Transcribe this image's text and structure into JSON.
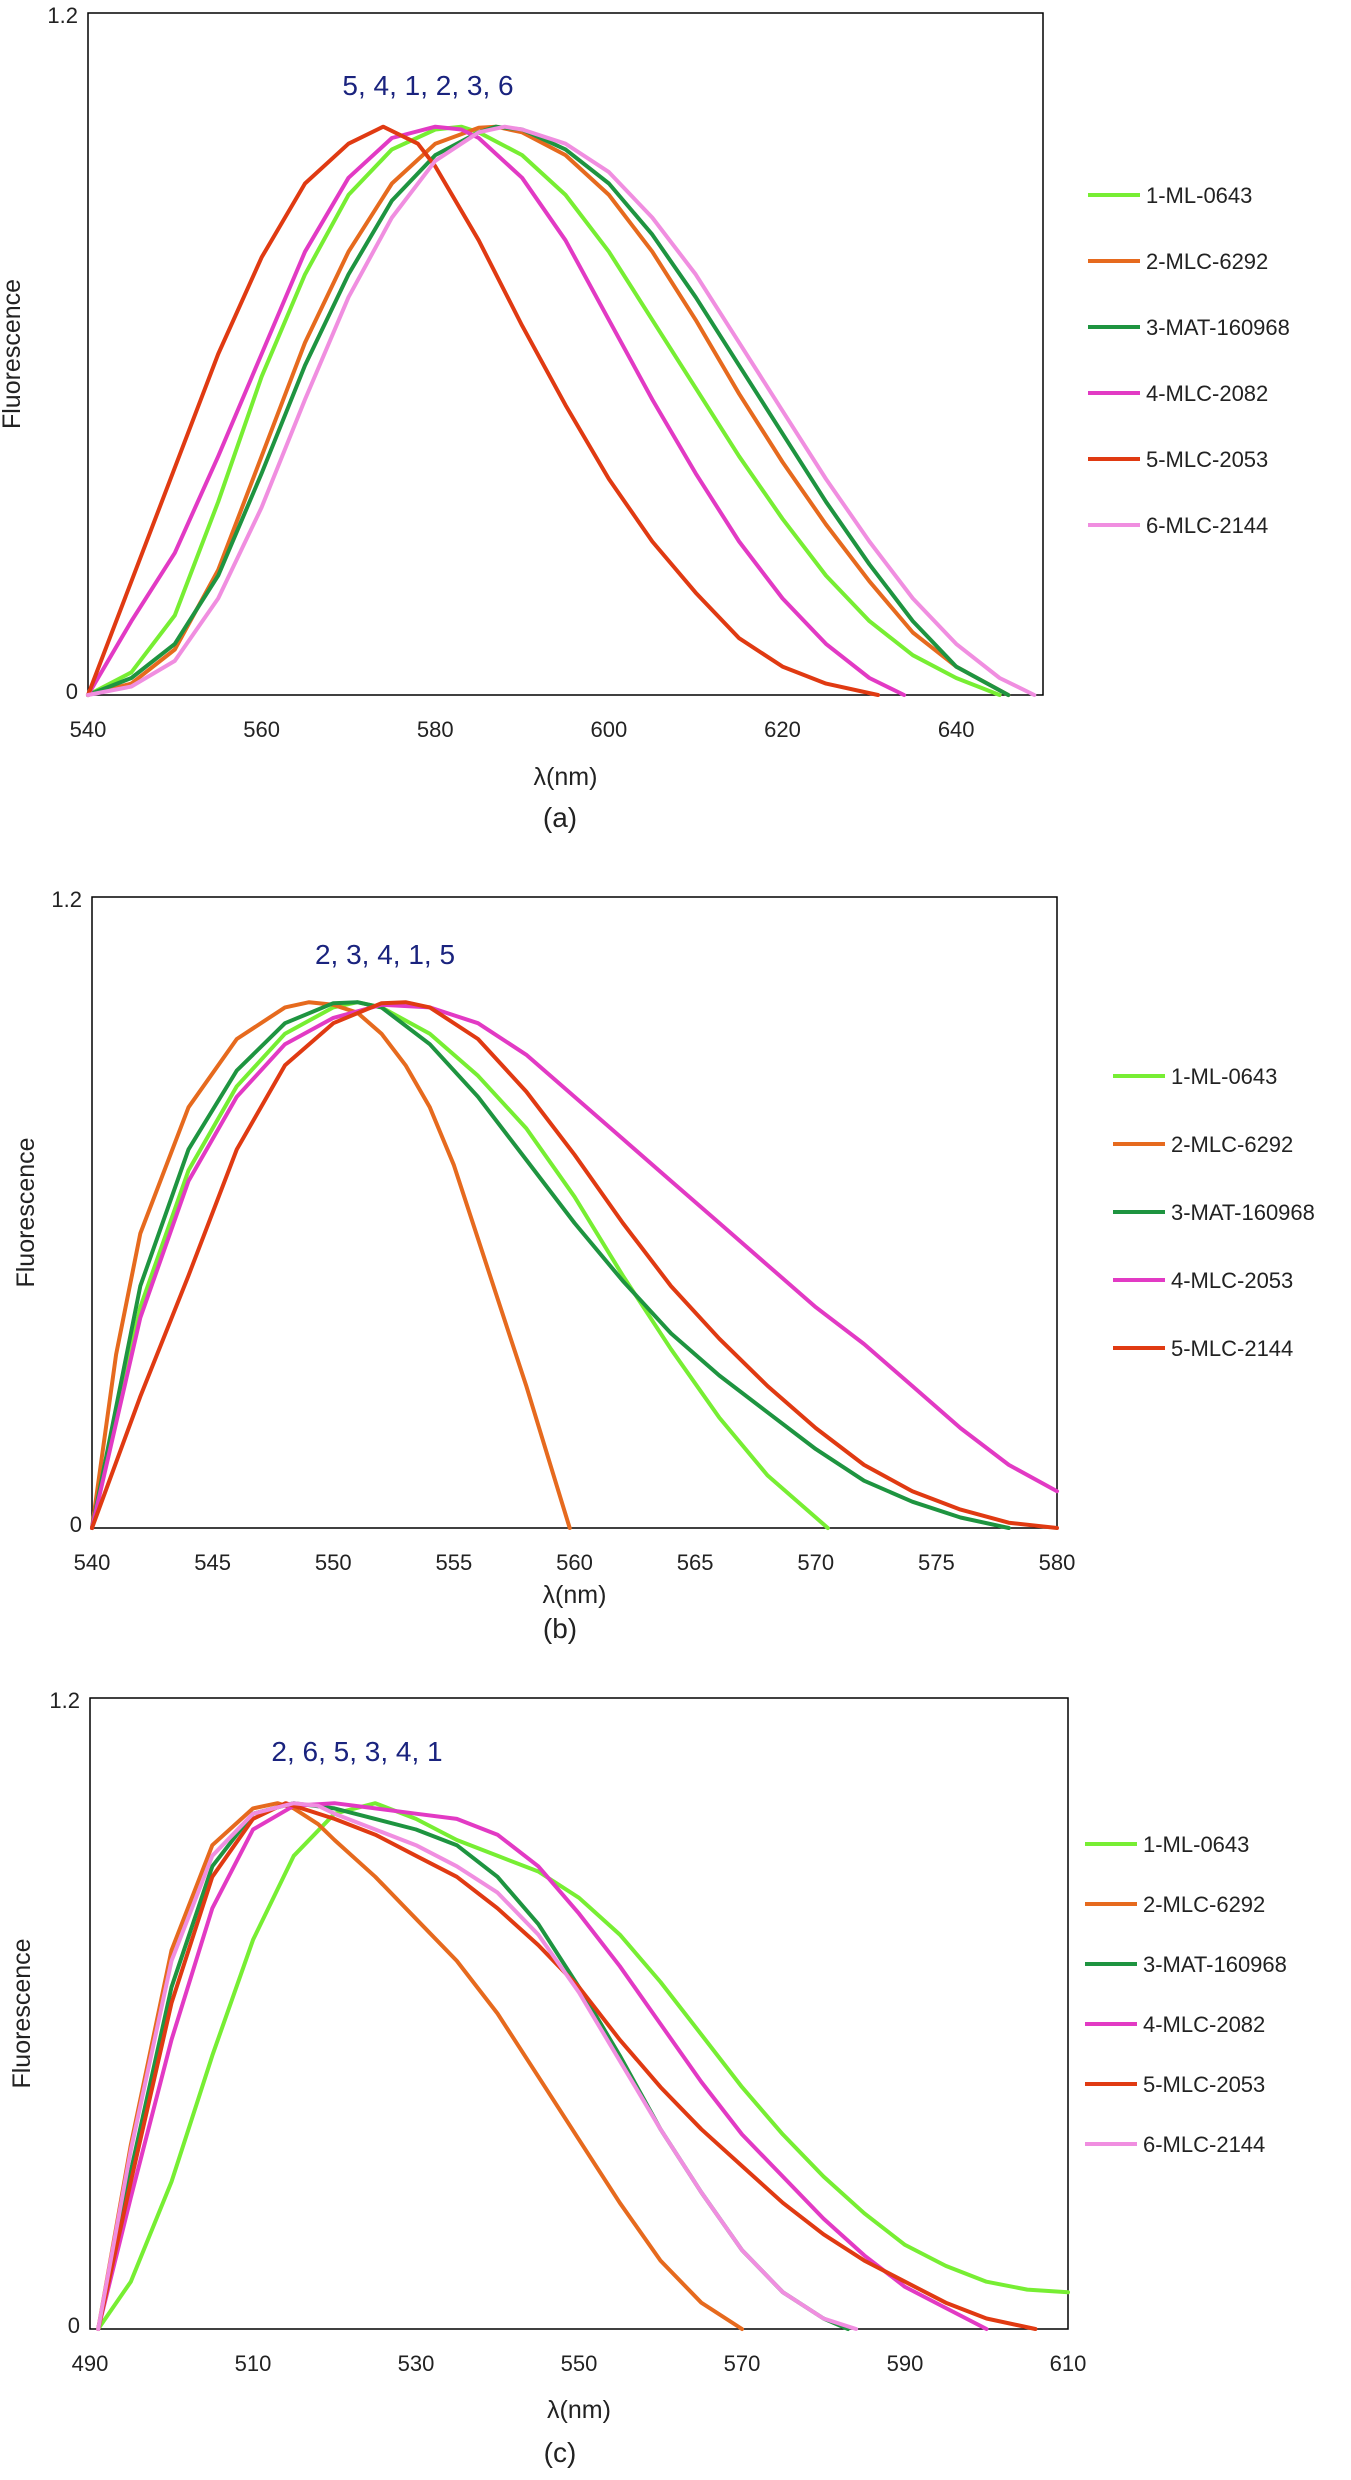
{
  "chart_data": [
    {
      "type": "line",
      "panel_label": "(a)",
      "annotation": "5, 4, 1, 2, 3, 6",
      "xlabel": "λ(nm)",
      "ylabel": "Fluorescence",
      "xlim": [
        540,
        650
      ],
      "ylim": [
        0,
        1.2
      ],
      "xticks": [
        540,
        560,
        580,
        600,
        620,
        640
      ],
      "yticks": [
        0,
        1.2
      ],
      "grid": false,
      "legend_position": "right",
      "series": [
        {
          "name": "1-ML-0643",
          "color": "#77ee33",
          "x": [
            540,
            545,
            550,
            555,
            560,
            565,
            570,
            575,
            580,
            583,
            585,
            590,
            595,
            600,
            605,
            610,
            615,
            620,
            625,
            630,
            635,
            640,
            645
          ],
          "y": [
            0,
            0.04,
            0.14,
            0.34,
            0.56,
            0.74,
            0.88,
            0.96,
            0.995,
            1.0,
            0.99,
            0.95,
            0.88,
            0.78,
            0.66,
            0.54,
            0.42,
            0.31,
            0.21,
            0.13,
            0.07,
            0.03,
            0
          ]
        },
        {
          "name": "2-MLC-6292",
          "color": "#e66a1e",
          "x": [
            540,
            545,
            550,
            555,
            560,
            565,
            570,
            575,
            580,
            585,
            587,
            590,
            595,
            600,
            605,
            610,
            615,
            620,
            625,
            630,
            635,
            640,
            646
          ],
          "y": [
            0,
            0.02,
            0.08,
            0.22,
            0.42,
            0.62,
            0.78,
            0.9,
            0.97,
            0.998,
            1.0,
            0.99,
            0.95,
            0.88,
            0.78,
            0.66,
            0.53,
            0.41,
            0.3,
            0.2,
            0.11,
            0.05,
            0
          ]
        },
        {
          "name": "3-MAT-160968",
          "color": "#1e9440",
          "x": [
            540,
            545,
            550,
            555,
            560,
            565,
            570,
            575,
            580,
            585,
            587,
            590,
            595,
            600,
            605,
            610,
            615,
            620,
            625,
            630,
            635,
            640,
            646
          ],
          "y": [
            0,
            0.03,
            0.09,
            0.21,
            0.39,
            0.58,
            0.74,
            0.87,
            0.95,
            0.99,
            1.0,
            0.995,
            0.96,
            0.9,
            0.81,
            0.7,
            0.58,
            0.46,
            0.34,
            0.23,
            0.13,
            0.05,
            0
          ]
        },
        {
          "name": "4-MLC-2082",
          "color": "#e23ac4",
          "x": [
            540,
            545,
            550,
            555,
            560,
            565,
            570,
            575,
            580,
            583,
            585,
            590,
            595,
            600,
            605,
            610,
            615,
            620,
            625,
            630,
            634
          ],
          "y": [
            0,
            0.13,
            0.25,
            0.42,
            0.6,
            0.78,
            0.91,
            0.98,
            1.0,
            0.995,
            0.98,
            0.91,
            0.8,
            0.66,
            0.52,
            0.39,
            0.27,
            0.17,
            0.09,
            0.03,
            0
          ]
        },
        {
          "name": "5-MLC-2053",
          "color": "#e03a12",
          "x": [
            540,
            545,
            550,
            555,
            560,
            565,
            570,
            574,
            578,
            580,
            585,
            590,
            595,
            600,
            605,
            610,
            615,
            620,
            625,
            631
          ],
          "y": [
            0,
            0.2,
            0.4,
            0.6,
            0.77,
            0.9,
            0.97,
            1.0,
            0.97,
            0.93,
            0.8,
            0.65,
            0.51,
            0.38,
            0.27,
            0.18,
            0.1,
            0.05,
            0.02,
            0
          ]
        },
        {
          "name": "6-MLC-2144",
          "color": "#f08ee0",
          "x": [
            540,
            545,
            550,
            555,
            560,
            565,
            570,
            575,
            580,
            585,
            588,
            590,
            595,
            600,
            605,
            610,
            615,
            620,
            625,
            630,
            635,
            640,
            645,
            649
          ],
          "y": [
            0,
            0.015,
            0.06,
            0.17,
            0.33,
            0.52,
            0.7,
            0.84,
            0.94,
            0.99,
            1.0,
            0.995,
            0.97,
            0.92,
            0.84,
            0.74,
            0.62,
            0.5,
            0.38,
            0.27,
            0.17,
            0.09,
            0.03,
            0
          ]
        }
      ]
    },
    {
      "type": "line",
      "panel_label": "(b)",
      "annotation": "2, 3, 4, 1, 5",
      "xlabel": "λ(nm)",
      "ylabel": "Fluorescence",
      "xlim": [
        540,
        580
      ],
      "ylim": [
        0,
        1.2
      ],
      "xticks": [
        540,
        545,
        550,
        555,
        560,
        565,
        570,
        575,
        580
      ],
      "yticks": [
        0,
        1.2
      ],
      "grid": false,
      "legend_position": "right",
      "series": [
        {
          "name": "1-ML-0643",
          "color": "#77ee33",
          "x": [
            540,
            542,
            544,
            546,
            548,
            550,
            551,
            552,
            554,
            556,
            558,
            560,
            562,
            564,
            566,
            568,
            570,
            570.5
          ],
          "y": [
            0,
            0.42,
            0.68,
            0.84,
            0.94,
            0.99,
            1.0,
            0.99,
            0.94,
            0.86,
            0.76,
            0.63,
            0.48,
            0.34,
            0.21,
            0.1,
            0.02,
            0
          ]
        },
        {
          "name": "2-MLC-6292",
          "color": "#e66a1e",
          "x": [
            540,
            541,
            542,
            544,
            546,
            548,
            549,
            550,
            551,
            552,
            553,
            554,
            555,
            556,
            557,
            558,
            559,
            559.8
          ],
          "y": [
            0,
            0.33,
            0.56,
            0.8,
            0.93,
            0.99,
            1.0,
            0.995,
            0.98,
            0.94,
            0.88,
            0.8,
            0.69,
            0.55,
            0.41,
            0.27,
            0.12,
            0
          ]
        },
        {
          "name": "3-MAT-160968",
          "color": "#1e9440",
          "x": [
            540,
            542,
            544,
            546,
            548,
            550,
            551,
            552,
            554,
            556,
            558,
            560,
            562,
            564,
            566,
            568,
            570,
            572,
            574,
            576,
            578
          ],
          "y": [
            0,
            0.46,
            0.72,
            0.87,
            0.96,
            0.998,
            1.0,
            0.99,
            0.92,
            0.82,
            0.7,
            0.58,
            0.47,
            0.37,
            0.29,
            0.22,
            0.15,
            0.09,
            0.05,
            0.02,
            0
          ]
        },
        {
          "name": "4-MLC-2053",
          "color": "#e23ac4",
          "x": [
            540,
            542,
            544,
            546,
            548,
            550,
            552,
            554,
            556,
            558,
            560,
            562,
            564,
            566,
            568,
            570,
            572,
            574,
            576,
            578,
            580
          ],
          "y": [
            0,
            0.4,
            0.66,
            0.82,
            0.92,
            0.97,
            0.995,
            0.99,
            0.96,
            0.9,
            0.82,
            0.74,
            0.66,
            0.58,
            0.5,
            0.42,
            0.35,
            0.27,
            0.19,
            0.12,
            0.07
          ]
        },
        {
          "name": "5-MLC-2144",
          "color": "#e03a12",
          "x": [
            540,
            542,
            544,
            546,
            548,
            550,
            552,
            553,
            554,
            556,
            558,
            560,
            562,
            564,
            566,
            568,
            570,
            572,
            574,
            576,
            578,
            580
          ],
          "y": [
            0,
            0.25,
            0.48,
            0.72,
            0.88,
            0.96,
            0.998,
            1.0,
            0.99,
            0.93,
            0.83,
            0.71,
            0.58,
            0.46,
            0.36,
            0.27,
            0.19,
            0.12,
            0.07,
            0.035,
            0.01,
            0
          ]
        }
      ]
    },
    {
      "type": "line",
      "panel_label": "(c)",
      "annotation": "2, 6, 5, 3, 4, 1",
      "xlabel": "λ(nm)",
      "ylabel": "Fluorescence",
      "xlim": [
        490,
        610
      ],
      "ylim": [
        0,
        1.2
      ],
      "xticks": [
        490,
        510,
        530,
        550,
        570,
        590,
        610
      ],
      "yticks": [
        0,
        1.2
      ],
      "grid": false,
      "legend_position": "right",
      "series": [
        {
          "name": "1-ML-0643",
          "color": "#77ee33",
          "x": [
            491,
            495,
            500,
            505,
            510,
            515,
            520,
            525,
            530,
            535,
            540,
            545,
            550,
            555,
            560,
            565,
            570,
            575,
            580,
            585,
            590,
            595,
            600,
            605,
            610
          ],
          "y": [
            0,
            0.09,
            0.28,
            0.52,
            0.74,
            0.9,
            0.98,
            1.0,
            0.97,
            0.93,
            0.9,
            0.87,
            0.82,
            0.75,
            0.66,
            0.56,
            0.46,
            0.37,
            0.29,
            0.22,
            0.16,
            0.12,
            0.09,
            0.075,
            0.07
          ]
        },
        {
          "name": "2-MLC-6292",
          "color": "#e66a1e",
          "x": [
            491,
            495,
            500,
            505,
            510,
            513,
            515,
            518,
            520,
            525,
            530,
            535,
            540,
            545,
            550,
            555,
            560,
            565,
            570
          ],
          "y": [
            0,
            0.35,
            0.72,
            0.92,
            0.99,
            1.0,
            0.99,
            0.96,
            0.93,
            0.86,
            0.78,
            0.7,
            0.6,
            0.48,
            0.36,
            0.24,
            0.13,
            0.05,
            0
          ]
        },
        {
          "name": "3-MAT-160968",
          "color": "#1e9440",
          "x": [
            491,
            495,
            500,
            505,
            510,
            515,
            520,
            525,
            530,
            535,
            540,
            545,
            550,
            555,
            560,
            565,
            570,
            575,
            580,
            583
          ],
          "y": [
            0,
            0.3,
            0.65,
            0.88,
            0.98,
            1.0,
            0.99,
            0.97,
            0.95,
            0.92,
            0.86,
            0.77,
            0.65,
            0.52,
            0.38,
            0.26,
            0.15,
            0.07,
            0.02,
            0
          ]
        },
        {
          "name": "4-MLC-2082",
          "color": "#e23ac4",
          "x": [
            491,
            495,
            500,
            505,
            510,
            515,
            520,
            525,
            530,
            535,
            540,
            545,
            550,
            555,
            560,
            565,
            570,
            575,
            580,
            585,
            590,
            595,
            600
          ],
          "y": [
            0,
            0.25,
            0.55,
            0.8,
            0.95,
            0.995,
            1.0,
            0.99,
            0.98,
            0.97,
            0.94,
            0.88,
            0.79,
            0.69,
            0.58,
            0.47,
            0.37,
            0.29,
            0.21,
            0.14,
            0.08,
            0.04,
            0
          ]
        },
        {
          "name": "5-MLC-2053",
          "color": "#e03a12",
          "x": [
            491,
            495,
            500,
            505,
            510,
            514,
            515,
            520,
            525,
            530,
            535,
            540,
            545,
            550,
            555,
            560,
            565,
            570,
            575,
            580,
            585,
            590,
            595,
            600,
            606
          ],
          "y": [
            0,
            0.28,
            0.62,
            0.86,
            0.97,
            1.0,
            0.995,
            0.97,
            0.94,
            0.9,
            0.86,
            0.8,
            0.73,
            0.65,
            0.55,
            0.46,
            0.38,
            0.31,
            0.24,
            0.18,
            0.13,
            0.09,
            0.05,
            0.02,
            0
          ]
        },
        {
          "name": "6-MLC-2144",
          "color": "#f08ee0",
          "x": [
            491,
            495,
            500,
            505,
            510,
            515,
            518,
            520,
            525,
            530,
            535,
            540,
            545,
            550,
            555,
            560,
            565,
            570,
            575,
            580,
            584
          ],
          "y": [
            0,
            0.34,
            0.7,
            0.9,
            0.98,
            1.0,
            0.995,
            0.98,
            0.95,
            0.92,
            0.88,
            0.83,
            0.75,
            0.64,
            0.51,
            0.38,
            0.26,
            0.15,
            0.07,
            0.02,
            0
          ]
        }
      ]
    }
  ]
}
